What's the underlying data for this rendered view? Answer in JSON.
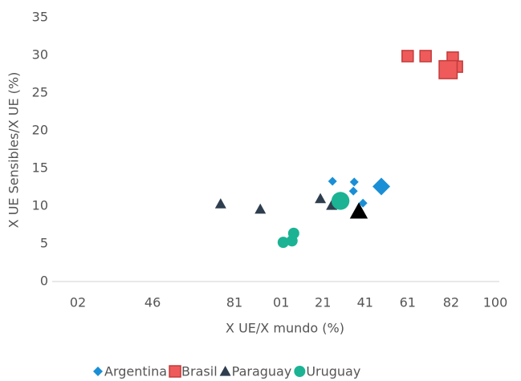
{
  "chart_data": {
    "type": "scatter",
    "y_label": "X UE Sensibles/X UE (%)",
    "x_label": "X UE/X mundo (%)",
    "xlim": [
      0,
      100
    ],
    "ylim": [
      0,
      35
    ],
    "xticks": [
      {
        "value": 0,
        "label": "02"
      },
      {
        "value": 17.9,
        "label": "46"
      },
      {
        "value": 37.5,
        "label": "81"
      },
      {
        "value": 48.7,
        "label": "01"
      },
      {
        "value": 58.7,
        "label": "21"
      },
      {
        "value": 68.8,
        "label": "41"
      },
      {
        "value": 79,
        "label": "61"
      },
      {
        "value": 89.4,
        "label": "82"
      },
      100
    ],
    "yticks": [
      0,
      5,
      10,
      15,
      20,
      25,
      30,
      35
    ],
    "legend": "bottom",
    "series": [
      {
        "name": "Argentina",
        "color": "#1a8fd6",
        "marker": "diamond",
        "x": [
          61.0,
          66.2,
          66.0,
          68.3,
          72.7
        ],
        "values": [
          13.3,
          13.2,
          12.0,
          10.4,
          12.6
        ],
        "sizes": [
          1,
          1,
          1,
          1,
          2
        ]
      },
      {
        "name": "Brasil",
        "color": "#ef5b5b",
        "marker": "square",
        "x": [
          79.0,
          83.3,
          89.8,
          90.8,
          88.7
        ],
        "values": [
          29.9,
          29.9,
          29.7,
          28.5,
          28.1
        ],
        "sizes": [
          1,
          1,
          1,
          1,
          1.6
        ]
      },
      {
        "name": "Paraguay",
        "color": "#2f3e4e",
        "marker": "triangle",
        "x": [
          34.2,
          43.7,
          58.1,
          60.8,
          67.3
        ],
        "values": [
          10.3,
          9.6,
          11.0,
          10.1,
          9.3
        ],
        "sizes": [
          1,
          1,
          1,
          1,
          1.6
        ]
      },
      {
        "name": "Uruguay",
        "color": "#1bb394",
        "marker": "circle",
        "x": [
          51.7,
          51.3,
          49.2,
          62.9
        ],
        "values": [
          6.4,
          5.4,
          5.2,
          10.7
        ],
        "sizes": [
          1,
          1,
          1,
          1.6
        ]
      }
    ]
  }
}
